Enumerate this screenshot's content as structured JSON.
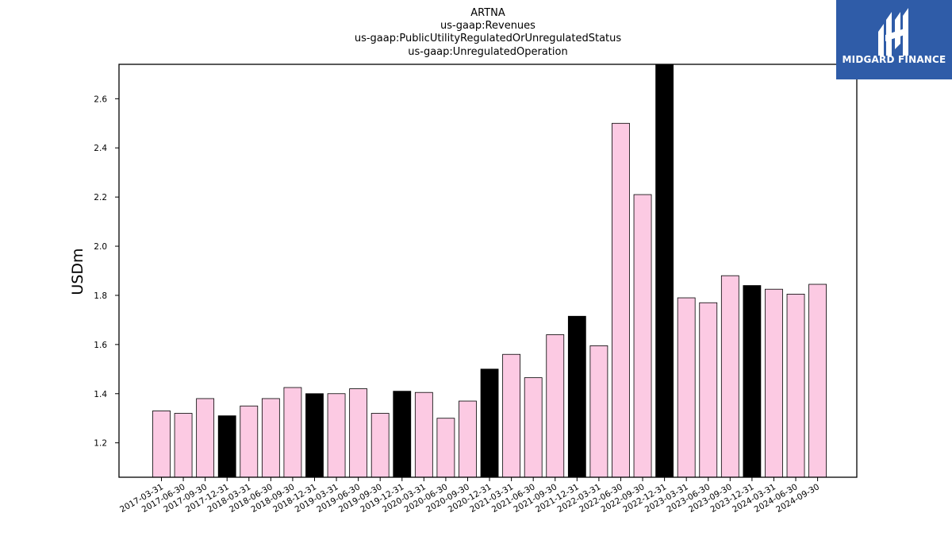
{
  "logo": {
    "text": "MIDGARD FINANCE"
  },
  "chart_data": {
    "type": "bar",
    "title_lines": [
      "ARTNA",
      "us-gaap:Revenues",
      "us-gaap:PublicUtilityRegulatedOrUnregulatedStatus",
      "us-gaap:UnregulatedOperation"
    ],
    "xlabel": "",
    "ylabel": "USDm",
    "ylim": [
      1.06,
      2.74
    ],
    "yticks": [
      1.2,
      1.4,
      1.6,
      1.8,
      2.0,
      2.2,
      2.4,
      2.6
    ],
    "ytick_labels": [
      "1.2",
      "1.4",
      "1.6",
      "1.8",
      "2.0",
      "2.2",
      "2.4",
      "2.6"
    ],
    "grid": false,
    "colors": {
      "quarter": "#fccae3",
      "year_end": "#000000",
      "edge": "#000000"
    },
    "categories": [
      "2017-03-31",
      "2017-06-30",
      "2017-09-30",
      "2017-12-31",
      "2018-03-31",
      "2018-06-30",
      "2018-09-30",
      "2018-12-31",
      "2019-03-31",
      "2019-06-30",
      "2019-09-30",
      "2019-12-31",
      "2020-03-31",
      "2020-06-30",
      "2020-09-30",
      "2020-12-31",
      "2021-03-31",
      "2021-06-30",
      "2021-09-30",
      "2021-12-31",
      "2022-03-31",
      "2022-06-30",
      "2022-09-30",
      "2022-12-31",
      "2023-03-31",
      "2023-06-30",
      "2023-09-30",
      "2023-12-31",
      "2024-03-31",
      "2024-06-30",
      "2024-09-30"
    ],
    "values": [
      1.33,
      1.32,
      1.38,
      1.31,
      1.35,
      1.38,
      1.425,
      1.4,
      1.4,
      1.42,
      1.32,
      1.41,
      1.405,
      1.3,
      1.37,
      1.5,
      1.56,
      1.465,
      1.64,
      1.715,
      1.595,
      2.5,
      2.21,
      2.74,
      1.79,
      1.77,
      1.88,
      1.84,
      1.825,
      1.805,
      1.845
    ],
    "year_end_flags": [
      false,
      false,
      false,
      true,
      false,
      false,
      false,
      true,
      false,
      false,
      false,
      true,
      false,
      false,
      false,
      true,
      false,
      false,
      false,
      true,
      false,
      false,
      false,
      true,
      false,
      false,
      false,
      true,
      false,
      false,
      false
    ]
  }
}
